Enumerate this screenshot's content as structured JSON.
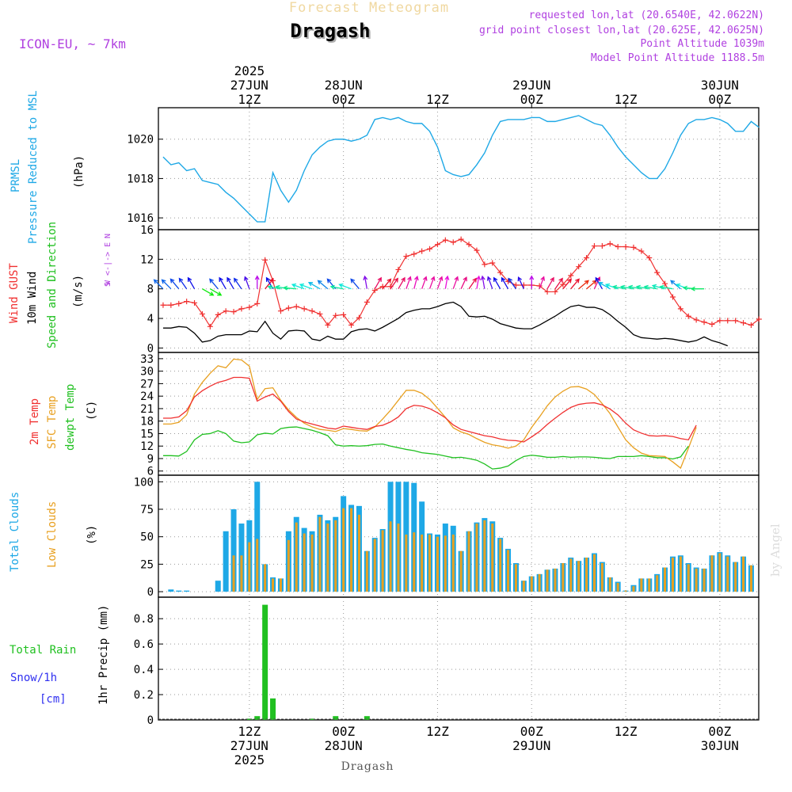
{
  "header": {
    "title_top": "Forecast Meteogram",
    "location": "Dragash",
    "model": "ICON-EU, ~ 7km",
    "requested": "requested lon,lat (20.6540E, 42.0622N)",
    "grid_point": "grid point closest lon,lat (20.625E, 42.0625N)",
    "point_alt": "Point Altitude 1039m",
    "model_alt": "Model Point Altitude 1188.5m",
    "footer_location": "Dragash",
    "watermark": "by Angel"
  },
  "colors": {
    "pressure": "#1ea8e6",
    "gust": "#f03030",
    "wind": "#000000",
    "dir_label": "#20c020",
    "temp": "#f03030",
    "sfc": "#e8a020",
    "dew": "#20c020",
    "total_clouds": "#1ea8e6",
    "low_clouds": "#e8a020",
    "rain": "#20c020",
    "snow": "#3030f0",
    "header_purple": "#b040e0"
  },
  "time_axis": {
    "top_ticks": [
      {
        "h": 12,
        "lines": [
          "2025",
          "27JUN",
          "12Z"
        ]
      },
      {
        "h": 24,
        "lines": [
          "28JUN",
          "00Z"
        ]
      },
      {
        "h": 36,
        "lines": [
          "12Z"
        ]
      },
      {
        "h": 48,
        "lines": [
          "29JUN",
          "00Z"
        ]
      },
      {
        "h": 60,
        "lines": [
          "12Z"
        ]
      },
      {
        "h": 72,
        "lines": [
          "30JUN",
          "00Z"
        ]
      }
    ],
    "bottom_ticks": [
      {
        "h": 12,
        "lines": [
          "12Z",
          "27JUN",
          "2025"
        ]
      },
      {
        "h": 24,
        "lines": [
          "00Z",
          "28JUN"
        ]
      },
      {
        "h": 36,
        "lines": [
          "12Z"
        ]
      },
      {
        "h": 48,
        "lines": [
          "00Z",
          "29JUN"
        ]
      },
      {
        "h": 60,
        "lines": [
          "12Z"
        ]
      },
      {
        "h": 72,
        "lines": [
          "00Z",
          "30JUN"
        ]
      }
    ]
  },
  "panels": {
    "pressure": {
      "labels": [
        "PRMSL",
        "Pressure Reduced to MSL"
      ],
      "unit": "(hPa)",
      "ticks": [
        "1016",
        "1018",
        "1020"
      ]
    },
    "wind": {
      "labels": [
        "Wind GUST",
        "10m Wind",
        "Speed and Direction"
      ],
      "unit": "(m/s)",
      "ticks": [
        "0",
        "4",
        "8",
        "12",
        "16"
      ],
      "compass": [
        "N",
        "W <-|-> E",
        "S"
      ]
    },
    "temp": {
      "labels": [
        "2m Temp",
        "SFC Temp",
        "dewpt Temp"
      ],
      "unit": "(C)",
      "ticks": [
        "6",
        "9",
        "12",
        "15",
        "18",
        "21",
        "24",
        "27",
        "30",
        "33"
      ]
    },
    "clouds": {
      "labels": [
        "Total Clouds",
        "Low Clouds"
      ],
      "unit": "(%)",
      "ticks": [
        "0",
        "25",
        "50",
        "75",
        "100"
      ]
    },
    "precip": {
      "labels": [
        "Total  Rain",
        "Snow/1h",
        "[cm]"
      ],
      "unit": "1hr Precip (mm)",
      "ticks": [
        "0",
        "0.2",
        "0.4",
        "0.6",
        "0.8"
      ]
    }
  },
  "chart_data": [
    {
      "type": "line",
      "title": "PRMSL Pressure Reduced to MSL",
      "ylabel": "(hPa)",
      "ylim": [
        1015.4,
        1021.6
      ],
      "x_hours_start": 0,
      "x_hours_step": 1,
      "series": [
        {
          "name": "PRMSL",
          "values": [
            1019.1,
            1018.7,
            1018.8,
            1018.4,
            1018.5,
            1017.9,
            1017.8,
            1017.7,
            1017.3,
            1017.0,
            1016.6,
            1016.2,
            1015.8,
            1015.8,
            1018.3,
            1017.4,
            1016.8,
            1017.4,
            1018.4,
            1019.2,
            1019.6,
            1019.9,
            1020.0,
            1020.0,
            1019.9,
            1020.0,
            1020.2,
            1021.0,
            1021.1,
            1021.0,
            1021.1,
            1020.9,
            1020.8,
            1020.8,
            1020.4,
            1019.6,
            1018.4,
            1018.2,
            1018.1,
            1018.2,
            1018.7,
            1019.3,
            1020.2,
            1020.9,
            1021.0,
            1021.0,
            1021.0,
            1021.1,
            1021.1,
            1020.9,
            1020.9,
            1021.0,
            1021.1,
            1021.2,
            1021.0,
            1020.8,
            1020.7,
            1020.2,
            1019.6,
            1019.1,
            1018.7,
            1018.3,
            1018.0,
            1018.0,
            1018.5,
            1019.3,
            1020.2,
            1020.8,
            1021.0,
            1021.0,
            1021.1,
            1021.0,
            1020.8,
            1020.4,
            1020.4,
            1020.9,
            1020.6
          ]
        }
      ]
    },
    {
      "type": "line",
      "title": "Wind GUST / 10m Wind Speed and Direction",
      "ylabel": "(m/s)",
      "ylim": [
        -0.6,
        16
      ],
      "series": [
        {
          "name": "Wind GUST",
          "values": [
            5.8,
            5.8,
            6.0,
            6.3,
            6.1,
            4.6,
            2.9,
            4.5,
            5.0,
            4.9,
            5.3,
            5.5,
            6.0,
            11.9,
            9.1,
            5.0,
            5.4,
            5.6,
            5.3,
            5.0,
            4.6,
            3.1,
            4.4,
            4.5,
            3.1,
            4.1,
            6.2,
            7.8,
            8.3,
            8.3,
            10.6,
            12.4,
            12.7,
            13.1,
            13.4,
            14.0,
            14.6,
            14.3,
            14.7,
            14.0,
            13.2,
            11.3,
            11.5,
            10.2,
            9.0,
            8.5,
            8.5,
            8.5,
            8.4,
            7.6,
            7.6,
            8.6,
            9.8,
            11.0,
            12.2,
            13.8,
            13.8,
            14.1,
            13.7,
            13.7,
            13.6,
            13.1,
            12.2,
            10.2,
            8.7,
            6.9,
            5.3,
            4.3,
            3.8,
            3.5,
            3.2,
            3.7,
            3.7,
            3.7,
            3.4,
            3.1,
            3.9
          ]
        },
        {
          "name": "10m Wind",
          "values": [
            2.7,
            2.7,
            2.9,
            2.8,
            2.0,
            0.8,
            1.0,
            1.6,
            1.8,
            1.8,
            1.8,
            2.3,
            2.2,
            3.6,
            2.0,
            1.2,
            2.3,
            2.4,
            2.3,
            1.2,
            1.0,
            1.6,
            1.2,
            1.2,
            2.2,
            2.5,
            2.6,
            2.3,
            2.8,
            3.4,
            4.0,
            4.8,
            5.1,
            5.3,
            5.3,
            5.6,
            6.0,
            6.2,
            5.6,
            4.3,
            4.2,
            4.3,
            3.9,
            3.3,
            3.0,
            2.7,
            2.6,
            2.6,
            3.1,
            3.7,
            4.3,
            5.0,
            5.6,
            5.8,
            5.5,
            5.5,
            5.2,
            4.5,
            3.6,
            2.8,
            1.8,
            1.4,
            1.3,
            1.2,
            1.3,
            1.2,
            1.0,
            0.8,
            1.0,
            1.5,
            1.0,
            0.7,
            0.3
          ]
        }
      ]
    },
    {
      "type": "line",
      "title": "2m Temp / SFC Temp / dewpt Temp",
      "ylabel": "(C)",
      "ylim": [
        5,
        34.5
      ],
      "series": [
        {
          "name": "2m Temp",
          "values": [
            18.7,
            18.7,
            19.0,
            20.5,
            23.8,
            25.3,
            26.4,
            27.3,
            27.8,
            28.5,
            28.5,
            28.3,
            22.8,
            23.8,
            24.5,
            22.8,
            20.3,
            18.5,
            17.8,
            17.3,
            16.8,
            16.3,
            16.1,
            16.8,
            16.5,
            16.2,
            16.0,
            16.7,
            17.0,
            17.8,
            19.0,
            21.0,
            21.8,
            21.6,
            21.0,
            20.0,
            18.8,
            17.1,
            16.0,
            15.5,
            15.0,
            14.5,
            14.2,
            13.7,
            13.4,
            13.3,
            13.0,
            14.2,
            15.5,
            17.2,
            18.7,
            20.1,
            21.3,
            22.0,
            22.3,
            22.4,
            21.9,
            20.9,
            19.5,
            17.5,
            15.9,
            15.1,
            14.5,
            14.4,
            14.5,
            14.3,
            13.8,
            13.5,
            17.0
          ]
        },
        {
          "name": "SFC Temp",
          "values": [
            17.3,
            17.3,
            17.7,
            19.5,
            24.5,
            27.3,
            29.5,
            31.3,
            30.8,
            32.9,
            32.7,
            31.2,
            23.2,
            25.8,
            26.0,
            23.0,
            20.7,
            18.9,
            17.5,
            16.6,
            16.0,
            15.8,
            15.5,
            16.2,
            16.0,
            15.7,
            15.6,
            16.6,
            18.5,
            20.6,
            23.0,
            25.4,
            25.4,
            24.7,
            23.2,
            21.1,
            18.9,
            16.4,
            15.4,
            14.8,
            13.8,
            12.9,
            12.3,
            12.0,
            11.5,
            12.0,
            13.5,
            16.5,
            19.0,
            21.7,
            23.8,
            25.2,
            26.2,
            26.3,
            25.7,
            24.4,
            22.2,
            19.8,
            16.6,
            13.5,
            11.6,
            10.3,
            9.7,
            9.6,
            9.5,
            8.2,
            6.7,
            11.5,
            16.5
          ]
        },
        {
          "name": "dewpt Temp",
          "values": [
            9.7,
            9.7,
            9.6,
            10.7,
            13.5,
            14.8,
            15.0,
            15.7,
            15.0,
            13.2,
            12.8,
            13.0,
            14.7,
            15.1,
            14.9,
            16.2,
            16.5,
            16.6,
            16.2,
            15.8,
            15.2,
            14.5,
            12.3,
            12.0,
            12.1,
            12.0,
            12.1,
            12.4,
            12.5,
            12.0,
            11.6,
            11.2,
            10.9,
            10.4,
            10.2,
            10.0,
            9.6,
            9.2,
            9.3,
            9.0,
            8.6,
            7.7,
            6.5,
            6.7,
            7.2,
            8.5,
            9.5,
            9.8,
            9.6,
            9.3,
            9.3,
            9.5,
            9.3,
            9.4,
            9.4,
            9.3,
            9.1,
            9.0,
            9.5,
            9.5,
            9.5,
            9.7,
            9.5,
            9.2,
            9.2,
            8.9,
            9.4,
            12.0
          ]
        }
      ]
    },
    {
      "type": "bar",
      "title": "Total Clouds / Low Clouds",
      "ylabel": "(%)",
      "ylim": [
        -5,
        106
      ],
      "series": [
        {
          "name": "Total Clouds",
          "values": [
            0,
            2,
            1,
            1,
            0,
            0,
            0,
            10,
            55,
            75,
            62,
            65,
            100,
            25,
            13,
            12,
            55,
            68,
            58,
            55,
            70,
            65,
            68,
            87,
            79,
            78,
            37,
            49,
            57,
            100,
            100,
            100,
            99,
            82,
            53,
            52,
            62,
            60,
            37,
            55,
            63,
            67,
            64,
            49,
            39,
            26,
            10,
            14,
            16,
            20,
            21,
            26,
            31,
            28,
            31,
            35,
            27,
            13,
            9,
            1,
            6,
            12,
            12,
            16,
            22,
            32,
            33,
            26,
            22,
            21,
            33,
            36,
            33,
            27,
            32,
            24
          ]
        },
        {
          "name": "Low Clouds",
          "values": [
            0,
            0,
            0,
            0,
            0,
            0,
            0,
            0,
            0,
            33,
            33,
            45,
            48,
            25,
            12,
            12,
            47,
            63,
            53,
            52,
            68,
            62,
            65,
            76,
            76,
            70,
            37,
            48,
            56,
            64,
            62,
            52,
            54,
            52,
            52,
            50,
            51,
            52,
            37,
            55,
            62,
            65,
            62,
            48,
            38,
            25,
            10,
            14,
            16,
            20,
            21,
            26,
            30,
            28,
            31,
            34,
            26,
            13,
            8,
            1,
            5,
            12,
            12,
            15,
            22,
            31,
            32,
            25,
            21,
            21,
            33,
            35,
            32,
            27,
            32,
            24
          ]
        }
      ]
    },
    {
      "type": "bar",
      "title": "1hr Precip",
      "ylabel": "1hr Precip (mm)",
      "ylim": [
        0,
        0.97
      ],
      "series": [
        {
          "name": "Total Rain",
          "values": [
            0,
            0,
            0,
            0,
            0,
            0,
            0,
            0,
            0,
            0,
            0,
            0.01,
            0.03,
            0.91,
            0.17,
            0,
            0,
            0,
            0,
            0.01,
            0,
            0,
            0.03,
            0,
            0,
            0,
            0.03,
            0,
            0,
            0,
            0,
            0,
            0,
            0,
            0,
            0,
            0,
            0,
            0,
            0,
            0,
            0,
            0,
            0,
            0,
            0,
            0,
            0,
            0,
            0,
            0,
            0,
            0,
            0,
            0,
            0,
            0,
            0,
            0,
            0,
            0,
            0,
            0,
            0,
            0,
            0,
            0,
            0,
            0,
            0,
            0,
            0,
            0,
            0,
            0,
            0
          ]
        }
      ]
    },
    {
      "type": "scatter",
      "title": "10m Wind Direction (deg, from)",
      "ylabel": "",
      "series": [
        {
          "name": "Direction",
          "values": [
            135,
            135,
            140,
            145,
            150,
            300,
            300,
            140,
            150,
            150,
            145,
            160,
            180,
            220,
            150,
            100,
            100,
            95,
            110,
            110,
            120,
            130,
            140,
            100,
            110,
            140,
            170,
            210,
            220,
            215,
            210,
            200,
            195,
            200,
            200,
            200,
            190,
            200,
            205,
            215,
            190,
            170,
            160,
            150,
            150,
            145,
            155,
            180,
            200,
            210,
            215,
            220,
            220,
            230,
            230,
            205,
            150,
            120,
            110,
            100,
            100,
            100,
            100,
            100,
            105,
            100,
            130,
            110,
            95,
            90
          ]
        }
      ]
    }
  ]
}
